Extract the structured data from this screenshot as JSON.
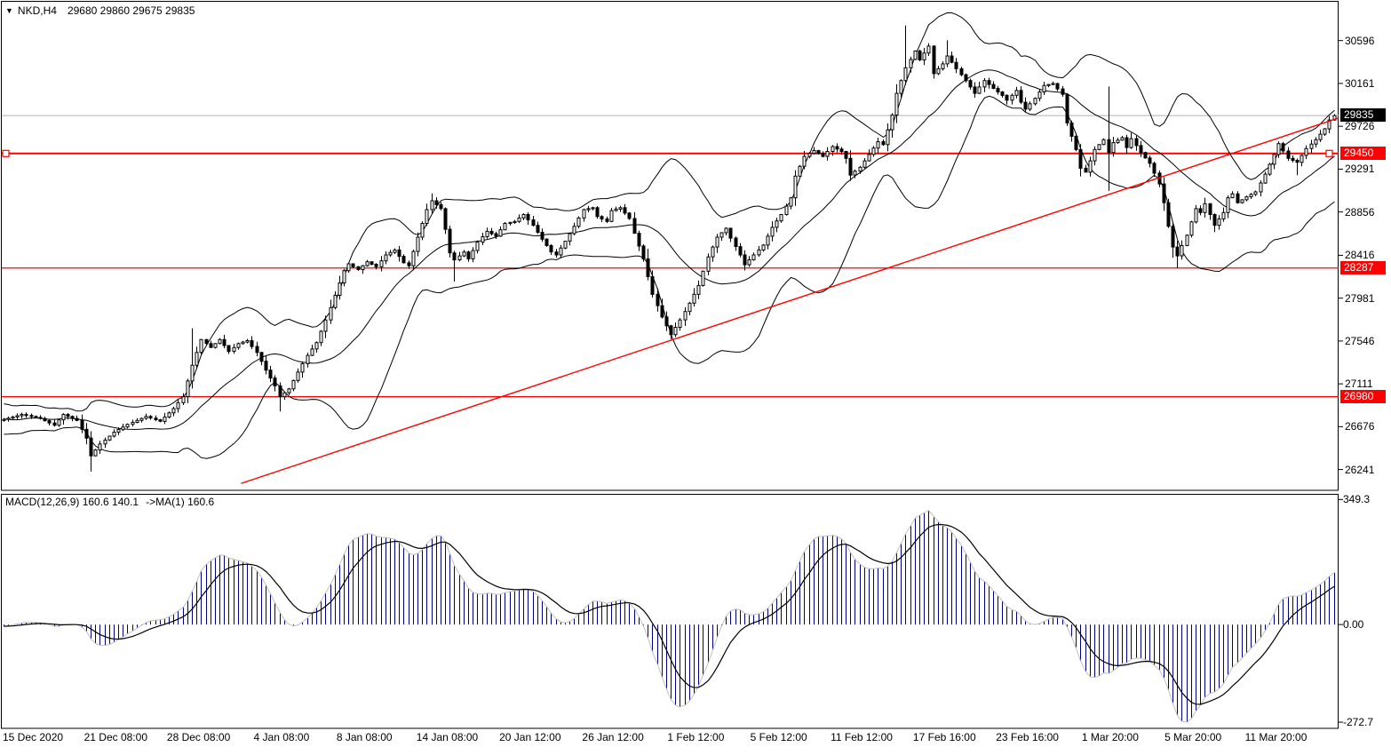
{
  "app": {
    "title_marker": "▼",
    "symbol_period": "NKD,H4",
    "ohlc": "29680 29860 29675 29835"
  },
  "colors": {
    "background": "#FFFFFF",
    "foreground": "#000000",
    "bull_body": "#FFFFFF",
    "bear_body": "#000000",
    "bollinger": "#000000",
    "level_line": "#FF0000",
    "trend_line": "#FF0000",
    "current_price_line": "#B0B0B0",
    "current_price_tag_bg": "#000000",
    "level_tag_bg": "#FF0000",
    "macd_histogram": "#000080",
    "macd_envelope": "#C0C0C0",
    "macd_signal": "#000000"
  },
  "chart_data": {
    "type": "candlestick+macd",
    "symbol": "NKD",
    "period": "H4",
    "price_pane": {
      "ylim": [
        26030,
        30990
      ],
      "axis_labels": [
        "30596",
        "30161",
        "29726",
        "29291",
        "28856",
        "28416",
        "27981",
        "27546",
        "27111",
        "26676",
        "26241"
      ],
      "current_price": 29835,
      "current_price_label": "29835",
      "level_lines": [
        {
          "price": 29450,
          "label": "29450",
          "selected": true
        },
        {
          "price": 28287,
          "label": "28287",
          "selected": false
        },
        {
          "price": 26980,
          "label": "26980",
          "selected": false
        }
      ],
      "trendline": {
        "from": {
          "x_frac": 0.179,
          "price": 26100
        },
        "to": {
          "x_frac": 1.0,
          "price": 29810
        }
      },
      "bollinger": {
        "period": 20,
        "deviation": 2
      },
      "candle_count": 290,
      "close_keyframes": [
        [
          0,
          26750
        ],
        [
          4,
          26800
        ],
        [
          8,
          26760
        ],
        [
          11,
          26690
        ],
        [
          13,
          26800
        ],
        [
          16,
          26740
        ],
        [
          18,
          26560
        ],
        [
          19,
          26380
        ],
        [
          21,
          26500
        ],
        [
          24,
          26620
        ],
        [
          27,
          26700
        ],
        [
          31,
          26780
        ],
        [
          34,
          26730
        ],
        [
          37,
          26860
        ],
        [
          39,
          26980
        ],
        [
          41,
          27300
        ],
        [
          43,
          27560
        ],
        [
          45,
          27480
        ],
        [
          47,
          27560
        ],
        [
          49,
          27440
        ],
        [
          51,
          27520
        ],
        [
          53,
          27550
        ],
        [
          55,
          27430
        ],
        [
          57,
          27250
        ],
        [
          59,
          27090
        ],
        [
          60,
          26980
        ],
        [
          62,
          27060
        ],
        [
          64,
          27230
        ],
        [
          66,
          27400
        ],
        [
          68,
          27530
        ],
        [
          70,
          27760
        ],
        [
          72,
          28010
        ],
        [
          74,
          28260
        ],
        [
          75,
          28330
        ],
        [
          77,
          28270
        ],
        [
          79,
          28350
        ],
        [
          81,
          28300
        ],
        [
          83,
          28420
        ],
        [
          85,
          28470
        ],
        [
          87,
          28340
        ],
        [
          88,
          28310
        ],
        [
          90,
          28600
        ],
        [
          92,
          28880
        ],
        [
          93,
          28970
        ],
        [
          95,
          28890
        ],
        [
          96,
          28680
        ],
        [
          97,
          28440
        ],
        [
          98,
          28370
        ],
        [
          100,
          28450
        ],
        [
          101,
          28380
        ],
        [
          103,
          28550
        ],
        [
          105,
          28660
        ],
        [
          107,
          28610
        ],
        [
          109,
          28740
        ],
        [
          111,
          28760
        ],
        [
          113,
          28830
        ],
        [
          115,
          28720
        ],
        [
          117,
          28580
        ],
        [
          119,
          28450
        ],
        [
          120,
          28420
        ],
        [
          122,
          28560
        ],
        [
          124,
          28710
        ],
        [
          126,
          28880
        ],
        [
          128,
          28900
        ],
        [
          129,
          28810
        ],
        [
          131,
          28760
        ],
        [
          132,
          28870
        ],
        [
          134,
          28900
        ],
        [
          136,
          28790
        ],
        [
          137,
          28640
        ],
        [
          139,
          28380
        ],
        [
          141,
          28020
        ],
        [
          143,
          27790
        ],
        [
          145,
          27610
        ],
        [
          147,
          27760
        ],
        [
          149,
          27930
        ],
        [
          151,
          28110
        ],
        [
          153,
          28400
        ],
        [
          155,
          28600
        ],
        [
          157,
          28690
        ],
        [
          158,
          28590
        ],
        [
          160,
          28420
        ],
        [
          161,
          28320
        ],
        [
          163,
          28420
        ],
        [
          165,
          28520
        ],
        [
          167,
          28700
        ],
        [
          169,
          28830
        ],
        [
          171,
          29000
        ],
        [
          172,
          29220
        ],
        [
          174,
          29420
        ],
        [
          176,
          29480
        ],
        [
          178,
          29420
        ],
        [
          180,
          29520
        ],
        [
          182,
          29470
        ],
        [
          183,
          29400
        ],
        [
          184,
          29230
        ],
        [
          186,
          29310
        ],
        [
          188,
          29440
        ],
        [
          190,
          29570
        ],
        [
          191,
          29540
        ],
        [
          192,
          29690
        ],
        [
          193,
          29840
        ],
        [
          194,
          30060
        ],
        [
          196,
          30320
        ],
        [
          198,
          30490
        ],
        [
          199,
          30400
        ],
        [
          201,
          30540
        ],
        [
          202,
          30260
        ],
        [
          204,
          30360
        ],
        [
          205,
          30440
        ],
        [
          207,
          30310
        ],
        [
          209,
          30190
        ],
        [
          211,
          30060
        ],
        [
          213,
          30190
        ],
        [
          215,
          30110
        ],
        [
          217,
          30040
        ],
        [
          218,
          29990
        ],
        [
          220,
          30090
        ],
        [
          221,
          29970
        ],
        [
          222,
          29900
        ],
        [
          224,
          30010
        ],
        [
          226,
          30140
        ],
        [
          228,
          30160
        ],
        [
          230,
          30050
        ],
        [
          231,
          29760
        ],
        [
          233,
          29490
        ],
        [
          234,
          29300
        ],
        [
          235,
          29260
        ],
        [
          237,
          29490
        ],
        [
          239,
          29590
        ],
        [
          240,
          29460
        ],
        [
          241,
          29560
        ],
        [
          243,
          29610
        ],
        [
          244,
          29510
        ],
        [
          245,
          29600
        ],
        [
          247,
          29460
        ],
        [
          249,
          29350
        ],
        [
          250,
          29250
        ],
        [
          251,
          29140
        ],
        [
          252,
          28950
        ],
        [
          253,
          28710
        ],
        [
          254,
          28500
        ],
        [
          255,
          28410
        ],
        [
          257,
          28620
        ],
        [
          259,
          28890
        ],
        [
          260,
          28850
        ],
        [
          261,
          28940
        ],
        [
          263,
          28720
        ],
        [
          265,
          28850
        ],
        [
          266,
          29000
        ],
        [
          267,
          29040
        ],
        [
          268,
          28950
        ],
        [
          270,
          29010
        ],
        [
          272,
          29060
        ],
        [
          274,
          29240
        ],
        [
          276,
          29440
        ],
        [
          277,
          29550
        ],
        [
          279,
          29400
        ],
        [
          281,
          29360
        ],
        [
          283,
          29500
        ],
        [
          285,
          29590
        ],
        [
          287,
          29700
        ],
        [
          288,
          29790
        ],
        [
          289,
          29835
        ]
      ],
      "wick_spikes": [
        {
          "i": 19,
          "low": 26220
        },
        {
          "i": 41,
          "high": 27675
        },
        {
          "i": 60,
          "low": 26830
        },
        {
          "i": 93,
          "high": 29045
        },
        {
          "i": 98,
          "low": 28150
        },
        {
          "i": 145,
          "low": 27560
        },
        {
          "i": 196,
          "high": 30750
        },
        {
          "i": 205,
          "high": 30600
        },
        {
          "i": 240,
          "high": 30130,
          "low": 29070
        },
        {
          "i": 255,
          "low": 28285
        },
        {
          "i": 281,
          "low": 29230
        }
      ]
    },
    "macd_pane": {
      "label": "MACD(12,26,9) 160.6 140.1",
      "ma_label": "->MA(1) 160.6",
      "params": [
        12,
        26,
        9
      ],
      "current_values": {
        "macd": 160.6,
        "signal": 140.1
      },
      "ylim": [
        -290,
        365
      ],
      "axis_values": [
        349.3,
        0,
        -272.7
      ],
      "axis_labels": [
        "349.3",
        "0.00",
        "-272.7"
      ]
    },
    "time_axis": {
      "labels": [
        "15 Dec 2020",
        "21 Dec 08:00",
        "28 Dec 08:00",
        "4 Jan 08:00",
        "8 Jan 08:00",
        "14 Jan 08:00",
        "20 Jan 12:00",
        "26 Jan 12:00",
        "1 Feb 12:00",
        "5 Feb 12:00",
        "11 Feb 12:00",
        "17 Feb 16:00",
        "23 Feb 16:00",
        "1 Mar 20:00",
        "5 Mar 20:00",
        "11 Mar 20:00"
      ]
    }
  }
}
